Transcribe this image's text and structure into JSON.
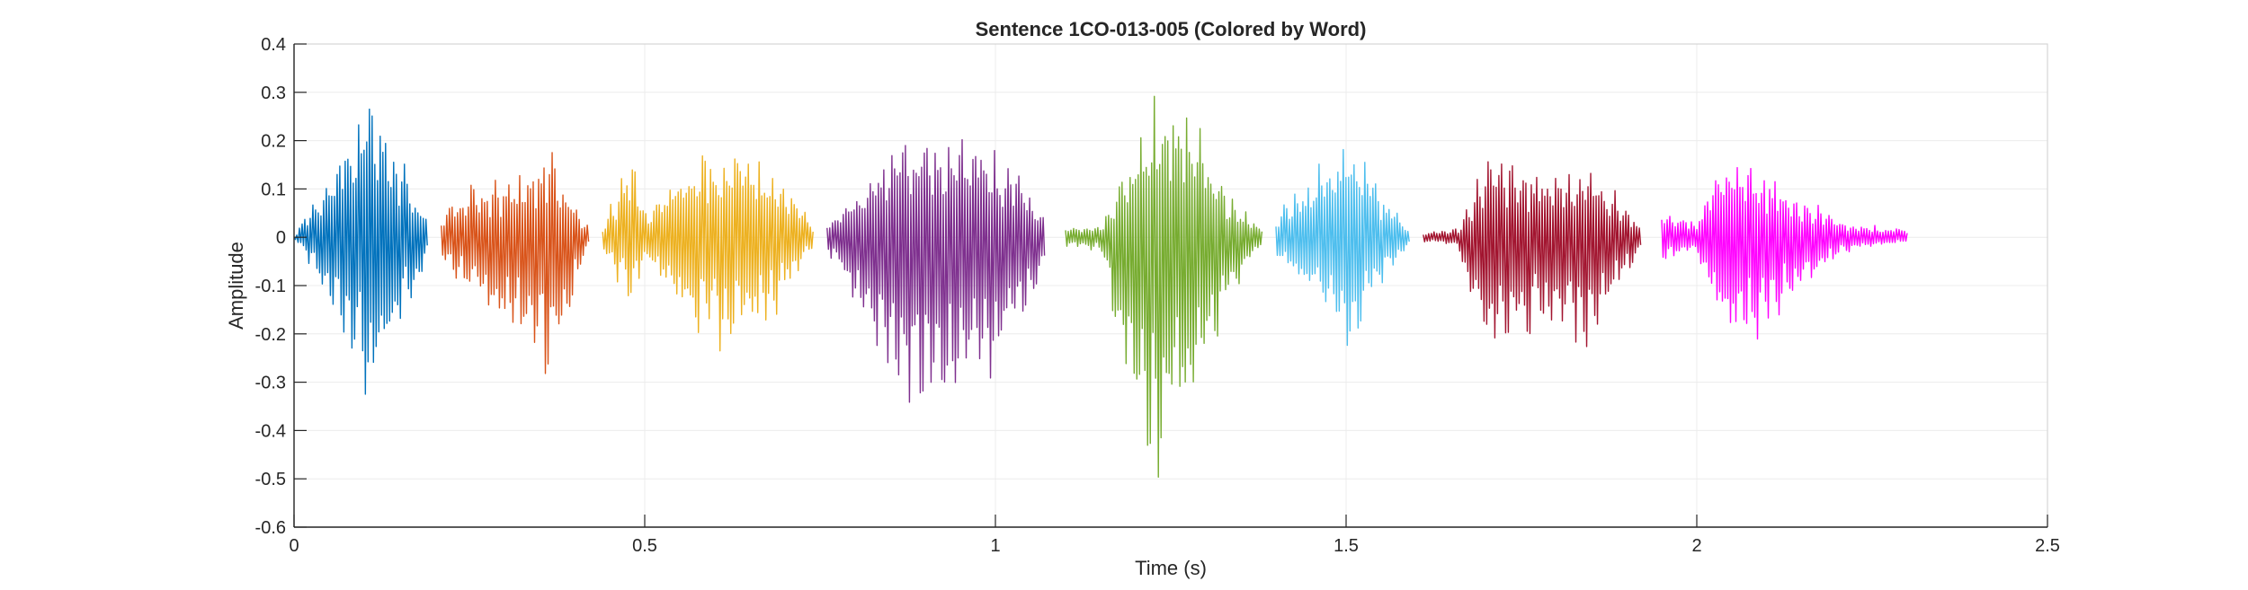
{
  "chart_data": {
    "type": "line",
    "title": "Sentence 1CO-013-005 (Colored by Word)",
    "xlabel": "Time (s)",
    "ylabel": "Amplitude",
    "xlim": [
      0,
      2.5
    ],
    "ylim": [
      -0.6,
      0.4
    ],
    "xticks": [
      0,
      0.5,
      1,
      1.5,
      2,
      2.5
    ],
    "xtick_labels": [
      "0",
      "0.5",
      "1",
      "1.5",
      "2",
      "2.5"
    ],
    "yticks": [
      -0.6,
      -0.5,
      -0.4,
      -0.3,
      -0.2,
      -0.1,
      0,
      0.1,
      0.2,
      0.3,
      0.4
    ],
    "ytick_labels": [
      "-0.6",
      "-0.5",
      "-0.4",
      "-0.3",
      "-0.2",
      "-0.1",
      "0",
      "0.1",
      "0.2",
      "0.3",
      "0.4"
    ],
    "grid": true,
    "series": [
      {
        "color": "#0072BD",
        "x": [
          0.0,
          0.03,
          0.07,
          0.11,
          0.12,
          0.15,
          0.19
        ],
        "ymax": [
          0.0,
          0.1,
          0.2,
          0.34,
          0.3,
          0.18,
          0.05
        ],
        "ymin": [
          0.0,
          -0.08,
          -0.25,
          -0.36,
          -0.32,
          -0.2,
          -0.05
        ]
      },
      {
        "color": "#D95319",
        "x": [
          0.21,
          0.25,
          0.31,
          0.36,
          0.39,
          0.42
        ],
        "ymax": [
          0.05,
          0.12,
          0.12,
          0.2,
          0.12,
          0.02
        ],
        "ymin": [
          -0.05,
          -0.12,
          -0.22,
          -0.34,
          -0.18,
          -0.02
        ]
      },
      {
        "color": "#EDB120",
        "x": [
          0.44,
          0.48,
          0.5,
          0.55,
          0.6,
          0.67,
          0.71,
          0.74
        ],
        "ymax": [
          0.02,
          0.19,
          0.05,
          0.15,
          0.21,
          0.17,
          0.1,
          0.03
        ],
        "ymin": [
          -0.02,
          -0.16,
          -0.05,
          -0.18,
          -0.24,
          -0.22,
          -0.1,
          -0.02
        ]
      },
      {
        "color": "#7E2F8E",
        "x": [
          0.76,
          0.8,
          0.87,
          0.91,
          0.98,
          1.04,
          1.07
        ],
        "ymax": [
          0.03,
          0.1,
          0.23,
          0.25,
          0.22,
          0.13,
          0.05
        ],
        "ymin": [
          -0.03,
          -0.15,
          -0.35,
          -0.39,
          -0.33,
          -0.2,
          -0.05
        ]
      },
      {
        "color": "#77AC30",
        "x": [
          1.1,
          1.15,
          1.2,
          1.24,
          1.28,
          1.33,
          1.38
        ],
        "ymax": [
          0.02,
          0.03,
          0.2,
          0.35,
          0.28,
          0.1,
          0.02
        ],
        "ymin": [
          -0.02,
          -0.03,
          -0.42,
          -0.56,
          -0.38,
          -0.15,
          -0.02
        ]
      },
      {
        "color": "#4DBEEE",
        "x": [
          1.4,
          1.44,
          1.49,
          1.51,
          1.55,
          1.59
        ],
        "ymax": [
          0.05,
          0.12,
          0.2,
          0.21,
          0.1,
          0.02
        ],
        "ymin": [
          -0.05,
          -0.12,
          -0.21,
          -0.25,
          -0.1,
          -0.02
        ]
      },
      {
        "color": "#A2142F",
        "x": [
          1.61,
          1.66,
          1.7,
          1.76,
          1.85,
          1.92
        ],
        "ymax": [
          0.01,
          0.02,
          0.18,
          0.15,
          0.16,
          0.03
        ],
        "ymin": [
          -0.01,
          -0.02,
          -0.28,
          -0.22,
          -0.23,
          -0.03
        ]
      },
      {
        "color": "#FF00FF",
        "x": [
          1.95,
          2.0,
          2.03,
          2.08,
          2.15,
          2.22,
          2.3
        ],
        "ymax": [
          0.06,
          0.04,
          0.17,
          0.16,
          0.09,
          0.03,
          0.02
        ],
        "ymin": [
          -0.06,
          -0.03,
          -0.22,
          -0.24,
          -0.11,
          -0.03,
          -0.01
        ]
      }
    ]
  }
}
